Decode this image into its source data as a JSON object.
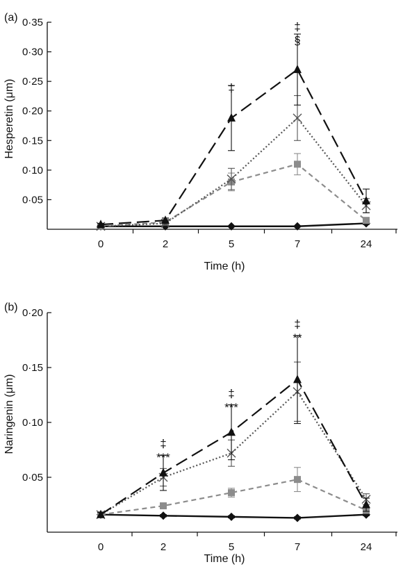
{
  "chart_data": [
    {
      "panel_label": "(a)",
      "type": "line",
      "xlabel": "Time (h)",
      "ylabel": "Hesperetin (μm)",
      "categories": [
        "0",
        "2",
        "5",
        "7",
        "24"
      ],
      "ylim": [
        0,
        0.35
      ],
      "yticks": [
        "0·05",
        "0·10",
        "0·15",
        "0·20",
        "0·25",
        "0·30",
        "0·35"
      ],
      "ytick_values": [
        0.05,
        0.1,
        0.15,
        0.2,
        0.25,
        0.3,
        0.35
      ],
      "series": [
        {
          "marker": "diamond",
          "color": "#111111",
          "dash": "solid",
          "values": [
            0.005,
            0.005,
            0.005,
            0.005,
            0.01
          ],
          "err": [
            0.001,
            0.001,
            0.001,
            0.001,
            0.002
          ]
        },
        {
          "marker": "square",
          "color": "#8c8c8c",
          "dash": "short-dash",
          "values": [
            0.005,
            0.012,
            0.08,
            0.11,
            0.015
          ],
          "err": [
            0.002,
            0.003,
            0.015,
            0.018,
            0.004
          ]
        },
        {
          "marker": "cross",
          "color": "#555555",
          "dash": "dotted",
          "values": [
            0.005,
            0.01,
            0.085,
            0.188,
            0.04
          ],
          "err": [
            0.002,
            0.003,
            0.018,
            0.038,
            0.012
          ]
        },
        {
          "marker": "triangle",
          "color": "#111111",
          "dash": "long-dash",
          "values": [
            0.008,
            0.015,
            0.188,
            0.27,
            0.048
          ],
          "err": [
            0.002,
            0.004,
            0.055,
            0.06,
            0.02
          ]
        }
      ],
      "annotations": [
        {
          "x": "5",
          "text": [
            "‡"
          ]
        },
        {
          "x": "7",
          "text": [
            "‡",
            "§"
          ]
        }
      ]
    },
    {
      "panel_label": "(b)",
      "type": "line",
      "xlabel": "Time (h)",
      "ylabel": "Naringenin (μm)",
      "categories": [
        "0",
        "2",
        "5",
        "7",
        "24"
      ],
      "ylim": [
        0,
        0.2
      ],
      "yticks": [
        "0·05",
        "0·10",
        "0·15",
        "0·20"
      ],
      "ytick_values": [
        0.05,
        0.1,
        0.15,
        0.2
      ],
      "series": [
        {
          "marker": "diamond",
          "color": "#111111",
          "dash": "solid",
          "values": [
            0.016,
            0.015,
            0.014,
            0.013,
            0.016
          ],
          "err": [
            0.001,
            0.001,
            0.001,
            0.001,
            0.001
          ]
        },
        {
          "marker": "square",
          "color": "#8c8c8c",
          "dash": "short-dash",
          "values": [
            0.016,
            0.024,
            0.036,
            0.048,
            0.02
          ],
          "err": [
            0.001,
            0.002,
            0.004,
            0.011,
            0.003
          ]
        },
        {
          "marker": "cross",
          "color": "#555555",
          "dash": "dotted",
          "values": [
            0.016,
            0.05,
            0.072,
            0.128,
            0.03
          ],
          "err": [
            0.002,
            0.008,
            0.012,
            0.027,
            0.005
          ]
        },
        {
          "marker": "triangle",
          "color": "#111111",
          "dash": "long-dash",
          "values": [
            0.016,
            0.054,
            0.091,
            0.139,
            0.025
          ],
          "err": [
            0.002,
            0.016,
            0.025,
            0.04,
            0.006
          ]
        }
      ],
      "annotations": [
        {
          "x": "2",
          "text": [
            "‡",
            "***"
          ]
        },
        {
          "x": "5",
          "text": [
            "‡",
            "***"
          ]
        },
        {
          "x": "7",
          "text": [
            "‡",
            "**"
          ]
        }
      ]
    }
  ]
}
